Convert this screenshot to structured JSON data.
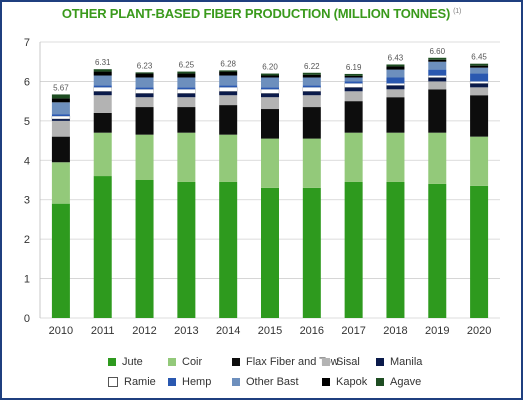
{
  "chart_data": {
    "type": "bar",
    "stacked": true,
    "title": "OTHER PLANT-BASED FIBER PRODUCTION (MILLION TONNES)",
    "title_note": "(1)",
    "categories": [
      "2010",
      "2011",
      "2012",
      "2013",
      "2014",
      "2015",
      "2016",
      "2017",
      "2018",
      "2019",
      "2020"
    ],
    "ylim": [
      0,
      7
    ],
    "yticks": [
      "0",
      "1",
      "2",
      "3",
      "4",
      "5",
      "6",
      "7"
    ],
    "grid": true,
    "totals": [
      "5.67",
      "6.31",
      "6.23",
      "6.25",
      "6.28",
      "6.20",
      "6.22",
      "6.19",
      "6.43",
      "6.60",
      "6.45"
    ],
    "series": [
      {
        "name": "Jute",
        "color": "#2e9a1e",
        "values": [
          2.9,
          3.6,
          3.5,
          3.45,
          3.45,
          3.3,
          3.3,
          3.45,
          3.45,
          3.4,
          3.35
        ]
      },
      {
        "name": "Coir",
        "color": "#93c97a",
        "values": [
          1.05,
          1.1,
          1.15,
          1.25,
          1.2,
          1.25,
          1.25,
          1.25,
          1.25,
          1.3,
          1.25
        ]
      },
      {
        "name": "Flax Fiber and Tow",
        "color": "#0d0d0d",
        "values": [
          0.65,
          0.5,
          0.7,
          0.65,
          0.75,
          0.75,
          0.8,
          0.8,
          0.9,
          1.1,
          1.05
        ]
      },
      {
        "name": "Sisal",
        "color": "#b3b3b3",
        "values": [
          0.4,
          0.45,
          0.25,
          0.25,
          0.25,
          0.3,
          0.3,
          0.25,
          0.2,
          0.2,
          0.2
        ]
      },
      {
        "name": "Manila",
        "color": "#0a1a4a",
        "values": [
          0.05,
          0.1,
          0.1,
          0.1,
          0.1,
          0.1,
          0.1,
          0.1,
          0.1,
          0.1,
          0.1
        ]
      },
      {
        "name": "Ramie",
        "color": "#ffffff",
        "values": [
          0.07,
          0.1,
          0.1,
          0.1,
          0.1,
          0.1,
          0.1,
          0.1,
          0.05,
          0.05,
          0.05
        ]
      },
      {
        "name": "Hemp",
        "color": "#2a58b0",
        "values": [
          0.05,
          0.05,
          0.05,
          0.05,
          0.05,
          0.05,
          0.05,
          0.05,
          0.15,
          0.15,
          0.2
        ]
      },
      {
        "name": "Other Bast",
        "color": "#6d8fbd",
        "values": [
          0.3,
          0.25,
          0.25,
          0.25,
          0.25,
          0.25,
          0.2,
          0.1,
          0.2,
          0.2,
          0.15
        ]
      },
      {
        "name": "Kapok",
        "color": "#000000",
        "values": [
          0.1,
          0.1,
          0.1,
          0.1,
          0.1,
          0.05,
          0.07,
          0.04,
          0.08,
          0.05,
          0.05
        ]
      },
      {
        "name": "Agave",
        "color": "#1e4d22",
        "values": [
          0.1,
          0.06,
          0.03,
          0.05,
          0.03,
          0.05,
          0.05,
          0.05,
          0.05,
          0.05,
          0.05
        ]
      }
    ]
  }
}
